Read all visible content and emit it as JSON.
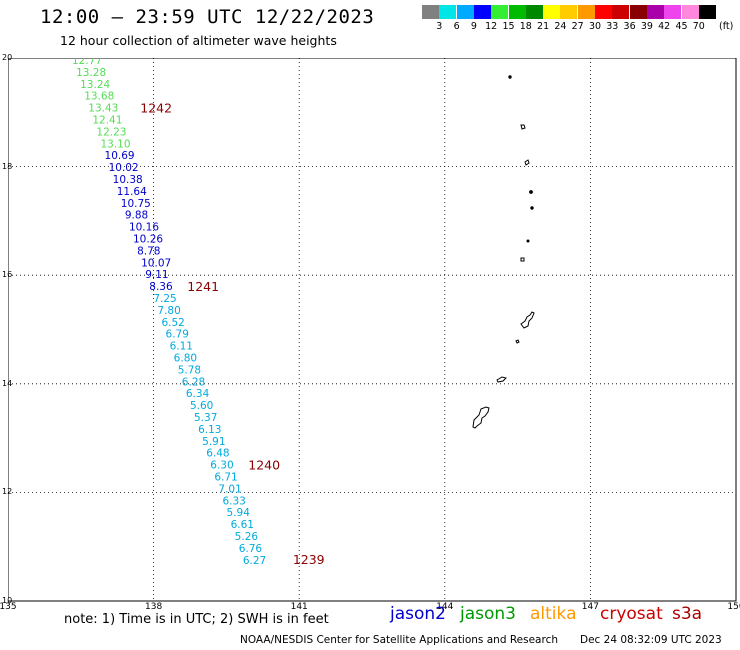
{
  "title": "12:00 – 23:59 UTC 12/22/2023",
  "subtitle": "12 hour collection of altimeter wave heights",
  "colorbar": {
    "unit": "(ft)",
    "colors": [
      "#808080",
      "#00e5e5",
      "#00aaff",
      "#0000ff",
      "#33ee33",
      "#00bb00",
      "#008800",
      "#ffff00",
      "#ffcc00",
      "#ff9900",
      "#ff0000",
      "#cc0000",
      "#880000",
      "#aa00aa",
      "#ee44ee",
      "#ff88dd",
      "#000000"
    ],
    "labels": [
      "3",
      "6",
      "9",
      "12",
      "15",
      "18",
      "21",
      "24",
      "27",
      "30",
      "33",
      "36",
      "39",
      "42",
      "45",
      "70"
    ]
  },
  "y_ticks": [
    "20",
    "18",
    "16",
    "14",
    "12",
    "10"
  ],
  "x_ticks": [
    "135",
    "138",
    "141",
    "144",
    "147",
    "150"
  ],
  "passes": [
    {
      "id": "1242",
      "color": "#55dd55",
      "values": [
        "12.77",
        "13.28",
        "13.24",
        "13.68",
        "13.43",
        "12.41",
        "12.23",
        "13.10"
      ]
    },
    {
      "id": "1241",
      "color": "#0000cc",
      "values": [
        "10.69",
        "10.02",
        "10.38",
        "11.64",
        "10.75",
        "9.88",
        "10.16",
        "10.26",
        "8.78",
        "10.07",
        "9.11",
        "8.36"
      ]
    },
    {
      "id": "1240",
      "color": "#00aadd",
      "values": [
        "7.25",
        "7.80",
        "6.52",
        "6.79",
        "6.11",
        "6.80",
        "5.78",
        "6.28",
        "6.34",
        "5.60",
        "5.37",
        "6.13",
        "5.91",
        "6.48",
        "6.30",
        "6.71",
        "7.01",
        "6.33",
        "5.94",
        "6.61",
        "5.26",
        "6.76",
        "6.27"
      ]
    },
    {
      "id": "1239",
      "color": "#8b0000",
      "values": []
    }
  ],
  "note": "note: 1) Time is in UTC; 2) SWH is in feet",
  "legend": [
    {
      "name": "jason2",
      "color": "#0000cc"
    },
    {
      "name": "jason3",
      "color": "#009900"
    },
    {
      "name": "altika",
      "color": "#ff9900"
    },
    {
      "name": "cryosat",
      "color": "#cc0000"
    },
    {
      "name": "s3a",
      "color": "#aa0000"
    }
  ],
  "credit": "NOAA/NESDIS Center for Satellite Applications and Research",
  "timestamp": "Dec 24 08:32:09 UTC 2023"
}
